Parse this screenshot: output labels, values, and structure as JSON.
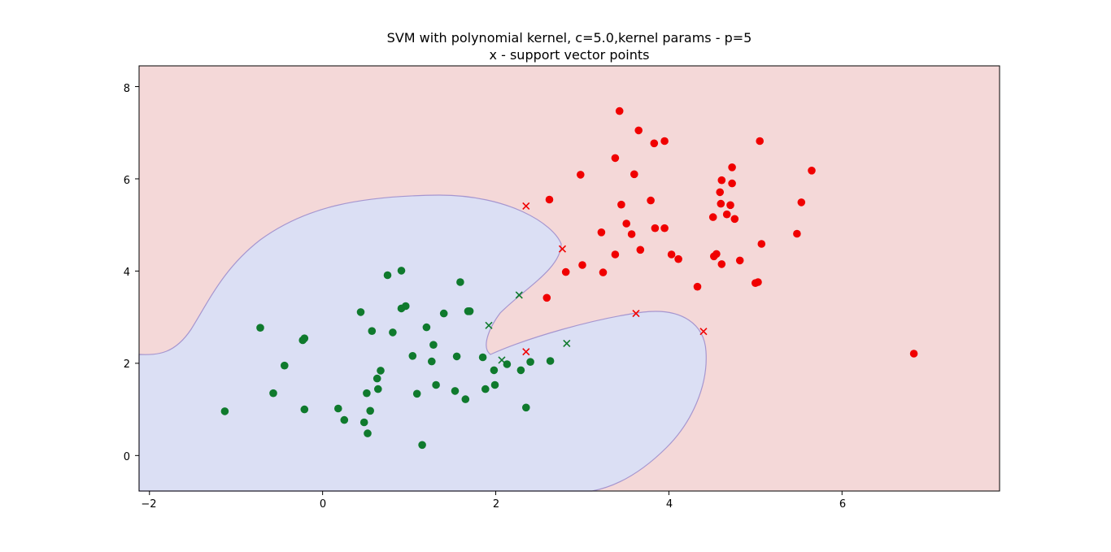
{
  "chart_data": {
    "type": "scatter",
    "title": "SVM with polynomial kernel, c=5.0,kernel params - p=5",
    "subtitle": "x - support vector points",
    "xlabel": "",
    "ylabel": "",
    "xlim": [
      -2.12,
      7.82
    ],
    "ylim": [
      -0.77,
      8.45
    ],
    "xticks": [
      "−2",
      "0",
      "2",
      "4",
      "6"
    ],
    "yticks": [
      "0",
      "2",
      "4",
      "6",
      "8"
    ],
    "grid": false,
    "legend": "none",
    "colors": {
      "class_negative": "#0f7a2d",
      "class_positive": "#f00000",
      "region_negative": "#dbdff4",
      "region_positive": "#f4d8d8",
      "boundary": "#a696cf"
    },
    "series": [
      {
        "marker": "circle",
        "color": "#0f7a2d",
        "points": [
          [
            -1.13,
            0.96
          ],
          [
            -0.72,
            2.77
          ],
          [
            -0.57,
            1.35
          ],
          [
            -0.44,
            1.95
          ],
          [
            -0.23,
            2.5
          ],
          [
            -0.21,
            2.54
          ],
          [
            -0.21,
            1.0
          ],
          [
            0.18,
            1.02
          ],
          [
            0.25,
            0.77
          ],
          [
            0.44,
            3.11
          ],
          [
            0.48,
            0.72
          ],
          [
            0.51,
            1.35
          ],
          [
            0.52,
            0.48
          ],
          [
            0.55,
            0.97
          ],
          [
            0.57,
            2.7
          ],
          [
            0.63,
            1.67
          ],
          [
            0.64,
            1.44
          ],
          [
            0.67,
            1.84
          ],
          [
            0.75,
            3.91
          ],
          [
            0.81,
            2.67
          ],
          [
            0.91,
            4.01
          ],
          [
            0.91,
            3.19
          ],
          [
            0.96,
            3.24
          ],
          [
            1.04,
            2.16
          ],
          [
            1.09,
            1.34
          ],
          [
            1.15,
            0.23
          ],
          [
            1.2,
            2.78
          ],
          [
            1.26,
            2.04
          ],
          [
            1.28,
            2.4
          ],
          [
            1.31,
            1.53
          ],
          [
            1.4,
            3.08
          ],
          [
            1.53,
            1.4
          ],
          [
            1.55,
            2.15
          ],
          [
            1.59,
            3.76
          ],
          [
            1.65,
            1.22
          ],
          [
            1.68,
            3.13
          ],
          [
            1.7,
            3.13
          ],
          [
            1.85,
            2.13
          ],
          [
            1.88,
            1.44
          ],
          [
            1.98,
            1.85
          ],
          [
            1.99,
            1.53
          ],
          [
            2.13,
            1.98
          ],
          [
            2.29,
            1.85
          ],
          [
            2.35,
            1.04
          ],
          [
            2.4,
            2.03
          ],
          [
            2.63,
            2.05
          ]
        ]
      },
      {
        "marker": "circle",
        "color": "#f00000",
        "points": [
          [
            2.59,
            3.42
          ],
          [
            2.62,
            5.55
          ],
          [
            2.81,
            3.98
          ],
          [
            2.98,
            6.09
          ],
          [
            3.0,
            4.13
          ],
          [
            3.22,
            4.84
          ],
          [
            3.24,
            3.97
          ],
          [
            3.38,
            6.45
          ],
          [
            3.38,
            4.36
          ],
          [
            3.43,
            7.47
          ],
          [
            3.45,
            5.44
          ],
          [
            3.51,
            5.03
          ],
          [
            3.57,
            4.8
          ],
          [
            3.6,
            6.1
          ],
          [
            3.65,
            7.05
          ],
          [
            3.67,
            4.46
          ],
          [
            3.79,
            5.53
          ],
          [
            3.83,
            6.77
          ],
          [
            3.84,
            4.93
          ],
          [
            3.95,
            6.82
          ],
          [
            3.95,
            4.93
          ],
          [
            4.03,
            4.36
          ],
          [
            4.11,
            4.26
          ],
          [
            4.33,
            3.66
          ],
          [
            4.51,
            5.17
          ],
          [
            4.52,
            4.32
          ],
          [
            4.55,
            4.37
          ],
          [
            4.59,
            5.71
          ],
          [
            4.6,
            5.46
          ],
          [
            4.61,
            5.97
          ],
          [
            4.61,
            4.15
          ],
          [
            4.67,
            5.23
          ],
          [
            4.71,
            5.43
          ],
          [
            4.73,
            5.9
          ],
          [
            4.73,
            6.25
          ],
          [
            4.76,
            5.13
          ],
          [
            4.82,
            4.23
          ],
          [
            5.0,
            3.74
          ],
          [
            5.03,
            3.76
          ],
          [
            5.05,
            6.82
          ],
          [
            5.07,
            4.59
          ],
          [
            5.48,
            4.81
          ],
          [
            5.53,
            5.49
          ],
          [
            5.65,
            6.18
          ],
          [
            6.83,
            2.21
          ]
        ]
      },
      {
        "marker": "x",
        "color": "#0f7a2d",
        "points": [
          [
            1.92,
            2.82
          ],
          [
            2.07,
            2.07
          ],
          [
            2.27,
            3.48
          ],
          [
            2.82,
            2.43
          ]
        ]
      },
      {
        "marker": "x",
        "color": "#f00000",
        "points": [
          [
            2.35,
            5.41
          ],
          [
            2.35,
            2.25
          ],
          [
            2.77,
            4.48
          ],
          [
            3.62,
            3.08
          ],
          [
            4.4,
            2.69
          ]
        ]
      }
    ]
  }
}
